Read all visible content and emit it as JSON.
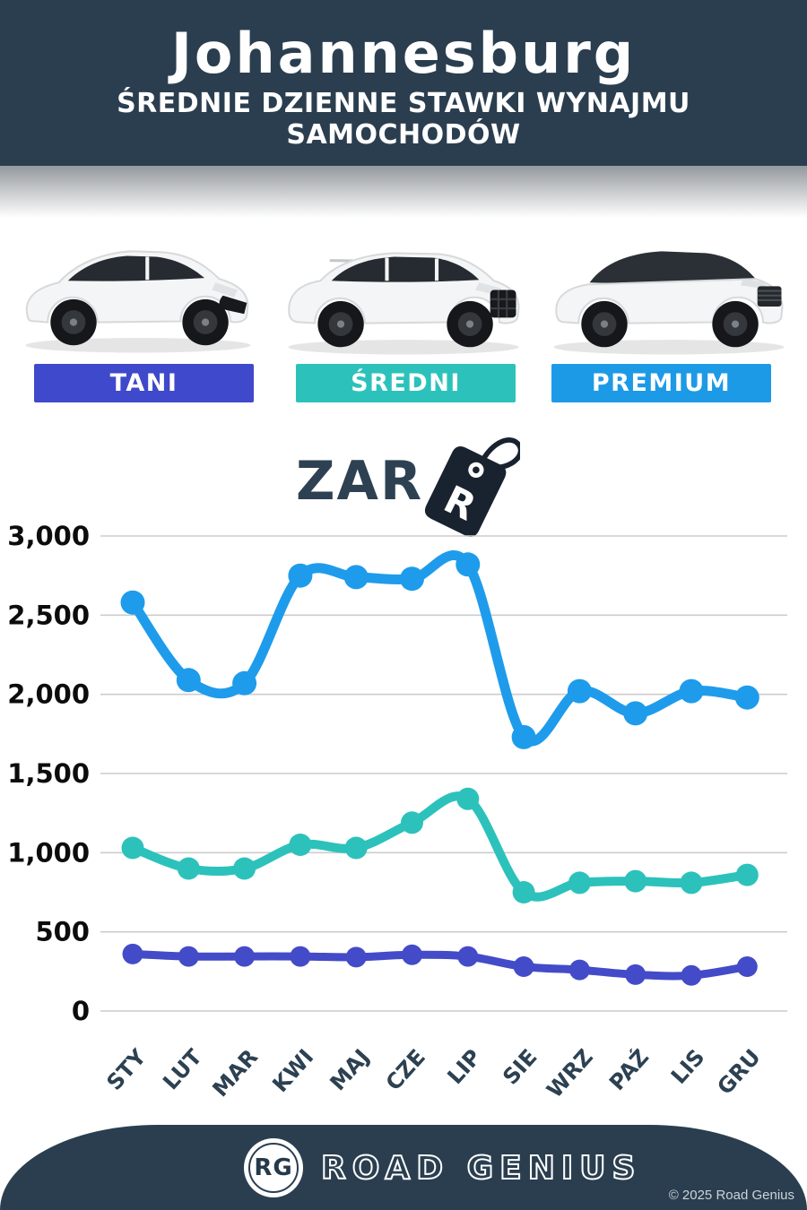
{
  "header": {
    "title": "Johannesburg",
    "subtitle": "ŚREDNIE DZIENNE STAWKI WYNAJMU SAMOCHODÓW",
    "bg_color": "#2a3e4f"
  },
  "cars": [
    {
      "icon": "hatchback-car",
      "category": "TANI"
    },
    {
      "icon": "midsize-suv-car",
      "category": "ŚREDNI"
    },
    {
      "icon": "premium-suv-car",
      "category": "PREMIUM"
    }
  ],
  "category_badges": [
    {
      "label": "TANI",
      "color": "#3e49cb"
    },
    {
      "label": "ŚREDNI",
      "color": "#2cc2bb"
    },
    {
      "label": "PREMIUM",
      "color": "#1d9ae6"
    }
  ],
  "currency": {
    "code": "ZAR",
    "tag_letter": "R"
  },
  "chart_data": {
    "type": "line",
    "categories": [
      "STY",
      "LUT",
      "MAR",
      "KWI",
      "MAJ",
      "CZE",
      "LIP",
      "SIE",
      "WRZ",
      "PAŹ",
      "LIS",
      "GRU"
    ],
    "series": [
      {
        "name": "PREMIUM",
        "color": "#1e9ceb",
        "values": [
          2580,
          2090,
          2070,
          2750,
          2740,
          2730,
          2820,
          1730,
          2020,
          1880,
          2020,
          1980
        ]
      },
      {
        "name": "ŚREDNI",
        "color": "#2cc2bb",
        "values": [
          1030,
          900,
          900,
          1050,
          1030,
          1190,
          1340,
          750,
          810,
          820,
          810,
          860
        ]
      },
      {
        "name": "TANI",
        "color": "#434bc8",
        "values": [
          360,
          345,
          345,
          345,
          340,
          355,
          345,
          280,
          260,
          230,
          225,
          280
        ]
      }
    ],
    "ylim": [
      0,
      3000
    ],
    "ytick_step": 500,
    "ytick_labels": [
      "0",
      "500",
      "1,000",
      "1,500",
      "2,000",
      "2,500",
      "3,000"
    ],
    "grid": true,
    "gridline_color": "#cccccc",
    "legend_position": "badges-above-chart",
    "unit": "ZAR"
  },
  "footer": {
    "logo_initials": "RG",
    "brand_name": "ROAD GENIUS",
    "copyright": "© 2025 Road Genius"
  }
}
